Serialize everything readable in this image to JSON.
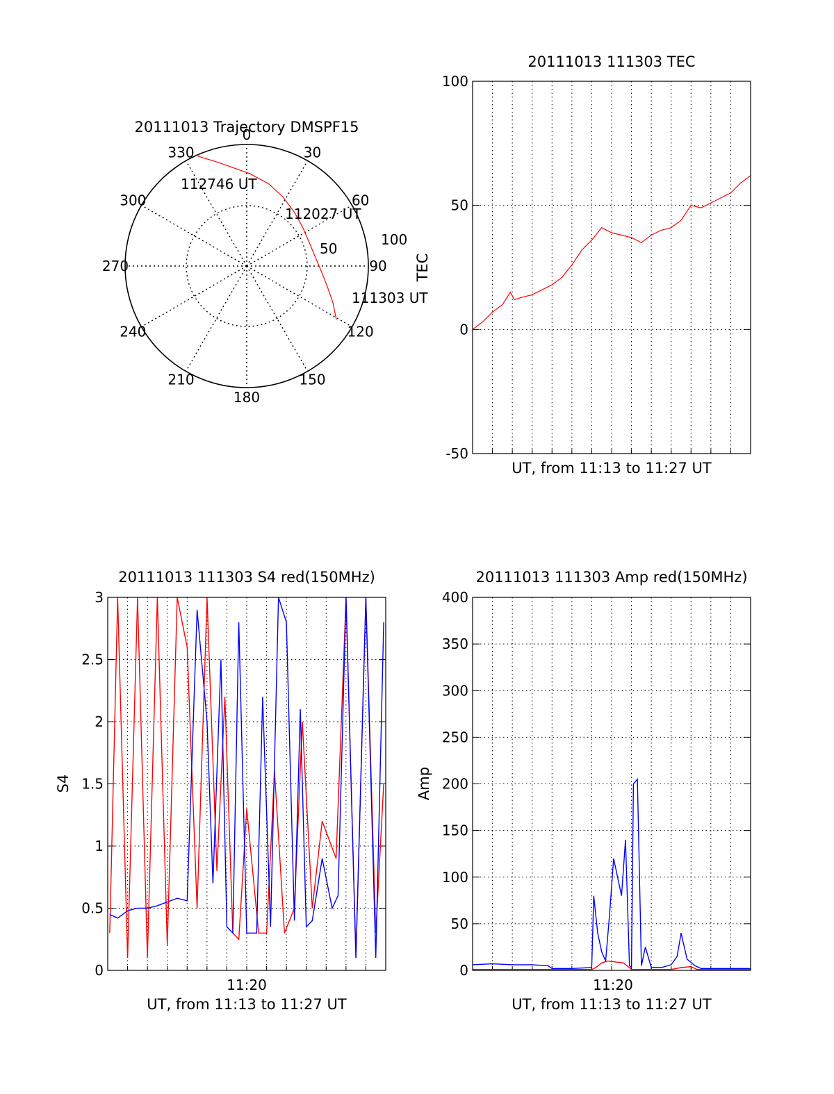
{
  "colors": {
    "red": "#ff0000",
    "blue": "#0000ff",
    "axis": "#000000"
  },
  "chart_data": [
    {
      "type": "polar",
      "title": "20111013 Trajectory DMSPF15",
      "azimuth_labels": [
        "0",
        "30",
        "60",
        "90",
        "120",
        "150",
        "180",
        "210",
        "240",
        "270",
        "300",
        "330"
      ],
      "radial_labels": [
        "50",
        "100"
      ],
      "trajectory": [
        {
          "az": 121,
          "r": 86
        },
        {
          "az": 113,
          "r": 77
        },
        {
          "az": 105,
          "r": 69
        },
        {
          "az": 95,
          "r": 62
        },
        {
          "az": 83,
          "r": 57
        },
        {
          "az": 70,
          "r": 55
        },
        {
          "az": 55,
          "r": 56
        },
        {
          "az": 42,
          "r": 59
        },
        {
          "az": 28,
          "r": 64
        },
        {
          "az": 15,
          "r": 70
        },
        {
          "az": 2,
          "r": 76
        },
        {
          "az": 345,
          "r": 88
        },
        {
          "az": 336,
          "r": 99
        }
      ],
      "annotations": [
        "112746 UT",
        "112027 UT",
        "111303 UT"
      ]
    },
    {
      "type": "line",
      "title": "20111013 111303 TEC",
      "xlabel": "UT, from 11:13 to 11:27 UT",
      "ylabel": "TEC",
      "xlim": [
        0,
        14
      ],
      "ylim": [
        -50,
        100
      ],
      "yticks": [
        "-50",
        "0",
        "50",
        "100"
      ],
      "series": [
        {
          "color": "red",
          "x": [
            0,
            0.5,
            1,
            1.5,
            1.9,
            2.1,
            2.5,
            3,
            3.5,
            4,
            4.5,
            5,
            5.5,
            6,
            6.5,
            7,
            7.5,
            8,
            8.5,
            9,
            9.5,
            10,
            10.5,
            11,
            11.5,
            12,
            12.5,
            13,
            13.5,
            14
          ],
          "y": [
            0,
            3,
            7,
            10,
            15,
            12,
            13,
            14,
            16,
            18,
            21,
            26,
            32,
            36,
            41,
            39,
            38,
            37,
            35,
            38,
            40,
            41,
            44,
            50,
            49,
            51,
            53,
            55,
            59,
            62
          ]
        }
      ]
    },
    {
      "type": "line",
      "title": "20111013 111303 S4 red(150MHz)",
      "xlabel": "UT, from 11:13 to 11:27 UT",
      "ylabel": "S4",
      "xlim": [
        0,
        14
      ],
      "ylim": [
        0,
        3
      ],
      "yticks": [
        "0",
        "0.5",
        "1",
        "1.5",
        "2",
        "2.5",
        "3"
      ],
      "xticks": [
        {
          "x": 7,
          "label": "11:20"
        }
      ],
      "series": [
        {
          "color": "red",
          "x": [
            0.1,
            0.5,
            1.0,
            1.5,
            2.0,
            2.5,
            3.0,
            3.5,
            4.0,
            4.5,
            5.0,
            5.5,
            5.9,
            6.3,
            6.6,
            7.0,
            7.6,
            8.0,
            8.4,
            8.9,
            9.4,
            9.8,
            10.3,
            10.8,
            11.5,
            12.0,
            12.5,
            13.0,
            13.5,
            13.9
          ],
          "y": [
            0.3,
            3.0,
            0.1,
            3.0,
            0.1,
            3.0,
            0.2,
            3.0,
            2.6,
            0.5,
            3.0,
            0.8,
            2.2,
            0.3,
            0.25,
            1.3,
            0.3,
            0.3,
            1.6,
            0.3,
            0.5,
            2.0,
            0.5,
            1.2,
            0.9,
            3.0,
            0.1,
            3.0,
            0.3,
            1.5
          ]
        },
        {
          "color": "blue",
          "x": [
            0.1,
            0.5,
            1.0,
            1.5,
            2.0,
            2.5,
            3.0,
            3.5,
            4.0,
            4.5,
            5.0,
            5.3,
            5.7,
            6.0,
            6.3,
            6.6,
            7.0,
            7.5,
            7.8,
            8.2,
            8.6,
            9.0,
            9.4,
            9.7,
            10.0,
            10.3,
            10.8,
            11.3,
            11.6,
            12.0,
            12.5,
            13.0,
            13.5,
            13.9
          ],
          "y": [
            0.45,
            0.42,
            0.48,
            0.5,
            0.5,
            0.52,
            0.55,
            0.58,
            0.56,
            2.9,
            2.0,
            0.7,
            2.5,
            0.35,
            0.3,
            2.8,
            0.3,
            0.3,
            2.2,
            0.35,
            3.0,
            2.8,
            0.4,
            2.1,
            0.35,
            0.4,
            0.9,
            0.5,
            0.6,
            3.0,
            0.1,
            3.0,
            0.1,
            2.8
          ]
        }
      ]
    },
    {
      "type": "line",
      "title": "20111013 111303 Amp red(150MHz)",
      "xlabel": "UT, from 11:13 to 11:27 UT",
      "ylabel": "Amp",
      "xlim": [
        0,
        14
      ],
      "ylim": [
        0,
        400
      ],
      "yticks": [
        "0",
        "50",
        "100",
        "150",
        "200",
        "250",
        "300",
        "350",
        "400"
      ],
      "xticks": [
        {
          "x": 7,
          "label": "11:20"
        }
      ],
      "series": [
        {
          "color": "red",
          "x": [
            0,
            6.0,
            6.2,
            6.5,
            6.8,
            7.2,
            7.6,
            8.0,
            10.0,
            10.5,
            11.0,
            11.3,
            14
          ],
          "y": [
            1,
            1,
            3,
            8,
            10,
            9,
            8,
            1,
            1,
            3,
            4,
            1,
            1
          ]
        },
        {
          "color": "blue",
          "x": [
            0,
            1,
            2,
            3,
            3.8,
            4.0,
            5.0,
            6.0,
            6.1,
            6.3,
            6.5,
            6.7,
            6.9,
            7.1,
            7.3,
            7.5,
            7.7,
            7.9,
            8.0,
            8.1,
            8.3,
            8.5,
            8.7,
            9.0,
            9.5,
            10.0,
            10.3,
            10.5,
            10.8,
            11.2,
            11.5,
            12,
            13,
            14
          ],
          "y": [
            6,
            7,
            6,
            6,
            5,
            2,
            2,
            3,
            80,
            40,
            20,
            10,
            60,
            120,
            100,
            80,
            140,
            5,
            3,
            200,
            205,
            5,
            25,
            3,
            3,
            6,
            15,
            40,
            12,
            5,
            2,
            2,
            2,
            2
          ]
        }
      ]
    }
  ]
}
